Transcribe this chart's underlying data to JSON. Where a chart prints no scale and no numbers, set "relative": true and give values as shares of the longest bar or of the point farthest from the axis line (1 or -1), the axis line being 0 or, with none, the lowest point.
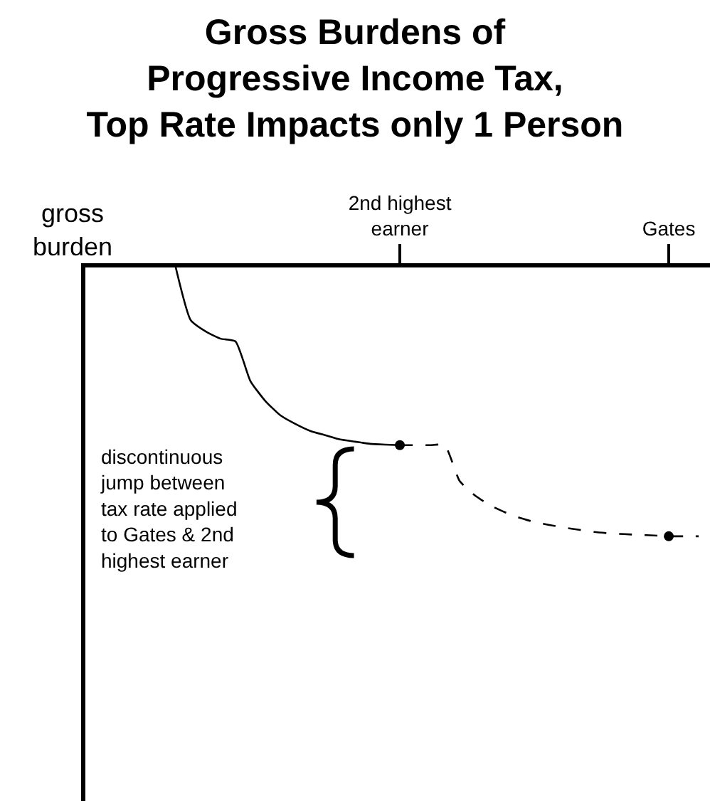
{
  "chart_data": {
    "type": "line",
    "title": "Gross Burdens of\nProgressive Income Tax,\nTop Rate Impacts only 1 Person",
    "ylabel": "gross\nburden",
    "relative": true,
    "categories": [
      null,
      null,
      null,
      null,
      null,
      null,
      null,
      null,
      null,
      null,
      null,
      null,
      null,
      null,
      null,
      null,
      null,
      null,
      null,
      null,
      "2nd highest\nearner",
      null,
      null,
      null,
      null,
      null,
      null,
      null,
      null,
      null,
      null,
      null,
      null,
      null,
      null,
      null,
      null,
      null,
      "Gates",
      null,
      null
    ],
    "annotations": [
      "discontinuous\njump between\ntax rate applied\nto Gates & 2nd\nhighest earner"
    ],
    "series": [
      {
        "color": "#000000",
        "line_style": "solid",
        "marker": "none",
        "values": [
          null,
          null,
          null,
          null,
          null,
          0,
          -0.196,
          -0.238,
          -0.265,
          -0.275,
          -0.423,
          -0.497,
          -0.55,
          -0.582,
          -0.608,
          -0.624,
          -0.64,
          -0.648,
          -0.656,
          -0.659,
          -0.661,
          null,
          null,
          null,
          null,
          null,
          null,
          null,
          null,
          null,
          null,
          null,
          null,
          null,
          null,
          null,
          null,
          null,
          null,
          null,
          null
        ]
      },
      {
        "color": "#000000",
        "line_style": "dashed",
        "marker": "none",
        "values": [
          null,
          null,
          null,
          null,
          null,
          null,
          null,
          null,
          null,
          null,
          null,
          null,
          null,
          null,
          null,
          null,
          null,
          null,
          null,
          null,
          -0.661,
          -0.661,
          -0.661,
          -0.661,
          -0.794,
          -0.847,
          -0.884,
          -0.91,
          -0.931,
          -0.947,
          -0.958,
          -0.968,
          -0.976,
          -0.984,
          -0.989,
          -0.992,
          -0.995,
          -0.997,
          -1.0,
          -1.0,
          -1.0
        ]
      },
      {
        "type": "scatter",
        "color": "#000000",
        "marker": "circle",
        "values": [
          null,
          null,
          null,
          null,
          null,
          null,
          null,
          null,
          null,
          null,
          null,
          null,
          null,
          null,
          null,
          null,
          null,
          null,
          null,
          null,
          -0.661,
          null,
          null,
          null,
          null,
          null,
          null,
          null,
          null,
          null,
          null,
          null,
          null,
          null,
          null,
          null,
          null,
          null,
          -1.0,
          null,
          null
        ]
      }
    ]
  }
}
